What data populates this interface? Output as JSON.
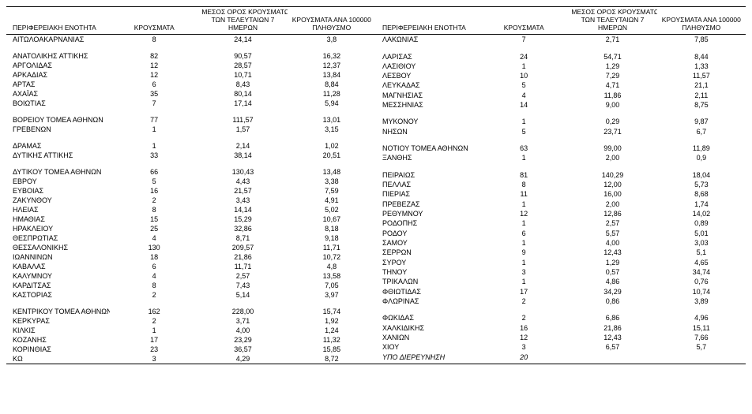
{
  "headers": {
    "region": "ΠΕΡΙΦΕΡΕΙΑΚΗ ΕΝΟΤΗΤΑ",
    "cases": "ΚΡΟΥΣΜΑΤΑ",
    "avg_line1": "ΜΕΣΟΣ ΟΡΟΣ ΚΡΟΥΣΜΑΤΩΝ",
    "avg_line2": "ΤΩΝ ΤΕΛΕΥΤΑΙΩΝ 7",
    "avg_line3": "ΗΜΕΡΩΝ",
    "per_line1": "ΚΡΟΥΣΜΑΤΑ ΑΝΑ 100000",
    "per_line2": "ΠΛΗΘΥΣΜΟ"
  },
  "left": [
    {
      "r": "ΑΙΤΩΛΟΑΚΑΡΝΑΝΙΑΣ",
      "a": "8",
      "b": "24,14",
      "c": "3,8"
    },
    {
      "spacer": true
    },
    {
      "r": "ΑΝΑΤΟΛΙΚΗΣ ΑΤΤΙΚΗΣ",
      "a": "82",
      "b": "90,57",
      "c": "16,32"
    },
    {
      "r": "ΑΡΓΟΛΙΔΑΣ",
      "a": "12",
      "b": "28,57",
      "c": "12,37"
    },
    {
      "r": "ΑΡΚΑΔΙΑΣ",
      "a": "12",
      "b": "10,71",
      "c": "13,84"
    },
    {
      "r": "ΑΡΤΑΣ",
      "a": "6",
      "b": "8,43",
      "c": "8,84"
    },
    {
      "r": "ΑΧΑΪΑΣ",
      "a": "35",
      "b": "80,14",
      "c": "11,28"
    },
    {
      "r": "ΒΟΙΩΤΙΑΣ",
      "a": "7",
      "b": "17,14",
      "c": "5,94"
    },
    {
      "spacer": true
    },
    {
      "r": "ΒΟΡΕΙΟΥ ΤΟΜΕΑ ΑΘΗΝΩΝ",
      "a": "77",
      "b": "111,57",
      "c": "13,01"
    },
    {
      "r": "ΓΡΕΒΕΝΩΝ",
      "a": "1",
      "b": "1,57",
      "c": "3,15"
    },
    {
      "spacer": true
    },
    {
      "r": "ΔΡΑΜΑΣ",
      "a": "1",
      "b": "2,14",
      "c": "1,02"
    },
    {
      "r": "ΔΥΤΙΚΗΣ ΑΤΤΙΚΗΣ",
      "a": "33",
      "b": "38,14",
      "c": "20,51"
    },
    {
      "spacer": true
    },
    {
      "r": "ΔΥΤΙΚΟΥ ΤΟΜΕΑ ΑΘΗΝΩΝ",
      "a": "66",
      "b": "130,43",
      "c": "13,48"
    },
    {
      "r": "ΕΒΡΟΥ",
      "a": "5",
      "b": "4,43",
      "c": "3,38"
    },
    {
      "r": "ΕΥΒΟΙΑΣ",
      "a": "16",
      "b": "21,57",
      "c": "7,59"
    },
    {
      "r": "ΖΑΚΥΝΘΟΥ",
      "a": "2",
      "b": "3,43",
      "c": "4,91"
    },
    {
      "r": "ΗΛΕΙΑΣ",
      "a": "8",
      "b": "14,14",
      "c": "5,02"
    },
    {
      "r": "ΗΜΑΘΙΑΣ",
      "a": "15",
      "b": "15,29",
      "c": "10,67"
    },
    {
      "r": "ΗΡΑΚΛΕΙΟΥ",
      "a": "25",
      "b": "32,86",
      "c": "8,18"
    },
    {
      "r": "ΘΕΣΠΡΩΤΙΑΣ",
      "a": "4",
      "b": "8,71",
      "c": "9,18"
    },
    {
      "r": "ΘΕΣΣΑΛΟΝΙΚΗΣ",
      "a": "130",
      "b": "209,57",
      "c": "11,71"
    },
    {
      "r": "ΙΩΑΝΝΙΝΩΝ",
      "a": "18",
      "b": "21,86",
      "c": "10,72"
    },
    {
      "r": "ΚΑΒΑΛΑΣ",
      "a": "6",
      "b": "11,71",
      "c": "4,8"
    },
    {
      "r": "ΚΑΛΥΜΝΟΥ",
      "a": "4",
      "b": "2,57",
      "c": "13,58"
    },
    {
      "r": "ΚΑΡΔΙΤΣΑΣ",
      "a": "8",
      "b": "7,43",
      "c": "7,05"
    },
    {
      "r": "ΚΑΣΤΟΡΙΑΣ",
      "a": "2",
      "b": "5,14",
      "c": "3,97"
    },
    {
      "spacer": true
    },
    {
      "r": "ΚΕΝΤΡΙΚΟΥ ΤΟΜΕΑ ΑΘΗΝΩΝ",
      "a": "162",
      "b": "228,00",
      "c": "15,74"
    },
    {
      "r": "ΚΕΡΚΥΡΑΣ",
      "a": "2",
      "b": "3,71",
      "c": "1,92"
    },
    {
      "r": "ΚΙΛΚΙΣ",
      "a": "1",
      "b": "4,00",
      "c": "1,24"
    },
    {
      "r": "ΚΟΖΑΝΗΣ",
      "a": "17",
      "b": "23,29",
      "c": "11,32"
    },
    {
      "r": "ΚΟΡΙΝΘΙΑΣ",
      "a": "23",
      "b": "36,57",
      "c": "15,85"
    },
    {
      "r": "ΚΩ",
      "a": "3",
      "b": "4,29",
      "c": "8,72"
    }
  ],
  "right": [
    {
      "r": "ΛΑΚΩΝΙΑΣ",
      "a": "7",
      "b": "2,71",
      "c": "7,85"
    },
    {
      "spacer": true
    },
    {
      "r": "ΛΑΡΙΣΑΣ",
      "a": "24",
      "b": "54,71",
      "c": "8,44"
    },
    {
      "r": "ΛΑΣΙΘΙΟΥ",
      "a": "1",
      "b": "1,29",
      "c": "1,33"
    },
    {
      "r": "ΛΕΣΒΟΥ",
      "a": "10",
      "b": "7,29",
      "c": "11,57"
    },
    {
      "r": "ΛΕΥΚΑΔΑΣ",
      "a": "5",
      "b": "4,71",
      "c": "21,1"
    },
    {
      "r": "ΜΑΓΝΗΣΙΑΣ",
      "a": "4",
      "b": "11,86",
      "c": "2,11"
    },
    {
      "r": "ΜΕΣΣΗΝΙΑΣ",
      "a": "14",
      "b": "9,00",
      "c": "8,75"
    },
    {
      "spacer": true
    },
    {
      "r": "ΜΥΚΟΝΟΥ",
      "a": "1",
      "b": "0,29",
      "c": "9,87"
    },
    {
      "r": "ΝΗΣΩΝ",
      "a": "5",
      "b": "23,71",
      "c": "6,7"
    },
    {
      "spacer": true
    },
    {
      "r": "ΝΟΤΙΟΥ ΤΟΜΕΑ ΑΘΗΝΩΝ",
      "a": "63",
      "b": "99,00",
      "c": "11,89"
    },
    {
      "r": "ΞΑΝΘΗΣ",
      "a": "1",
      "b": "2,00",
      "c": "0,9"
    },
    {
      "spacer": true
    },
    {
      "r": "ΠΕΙΡΑΙΩΣ",
      "a": "81",
      "b": "140,29",
      "c": "18,04"
    },
    {
      "r": "ΠΕΛΛΑΣ",
      "a": "8",
      "b": "12,00",
      "c": "5,73"
    },
    {
      "r": "ΠΙΕΡΙΑΣ",
      "a": "11",
      "b": "16,00",
      "c": "8,68"
    },
    {
      "r": "ΠΡΕΒΕΖΑΣ",
      "a": "1",
      "b": "2,00",
      "c": "1,74"
    },
    {
      "r": "ΡΕΘΥΜΝΟΥ",
      "a": "12",
      "b": "12,86",
      "c": "14,02"
    },
    {
      "r": "ΡΟΔΟΠΗΣ",
      "a": "1",
      "b": "2,57",
      "c": "0,89"
    },
    {
      "r": "ΡΟΔΟΥ",
      "a": "6",
      "b": "5,57",
      "c": "5,01"
    },
    {
      "r": "ΣΑΜΟΥ",
      "a": "1",
      "b": "4,00",
      "c": "3,03"
    },
    {
      "r": "ΣΕΡΡΩΝ",
      "a": "9",
      "b": "12,43",
      "c": "5,1"
    },
    {
      "r": "ΣΥΡΟΥ",
      "a": "1",
      "b": "1,29",
      "c": "4,65"
    },
    {
      "r": "ΤΗΝΟΥ",
      "a": "3",
      "b": "0,57",
      "c": "34,74"
    },
    {
      "r": "ΤΡΙΚΑΛΩΝ",
      "a": "1",
      "b": "4,86",
      "c": "0,76"
    },
    {
      "r": "ΦΘΙΩΤΙΔΑΣ",
      "a": "17",
      "b": "34,29",
      "c": "10,74"
    },
    {
      "r": "ΦΛΩΡΙΝΑΣ",
      "a": "2",
      "b": "0,86",
      "c": "3,89"
    },
    {
      "spacer": true
    },
    {
      "r": "ΦΩΚΙΔΑΣ",
      "a": "2",
      "b": "6,86",
      "c": "4,96"
    },
    {
      "r": "ΧΑΛΚΙΔΙΚΗΣ",
      "a": "16",
      "b": "21,86",
      "c": "15,11"
    },
    {
      "r": "ΧΑΝΙΩΝ",
      "a": "12",
      "b": "12,43",
      "c": "7,66"
    },
    {
      "r": "ΧΙΟΥ",
      "a": "3",
      "b": "6,57",
      "c": "5,7"
    },
    {
      "r": "ΥΠΟ ΔΙΕΡΕΥΝΗΣΗ",
      "a": "20",
      "b": "",
      "c": "",
      "italic": true
    },
    {
      "r": "",
      "a": "",
      "b": "",
      "c": ""
    }
  ]
}
